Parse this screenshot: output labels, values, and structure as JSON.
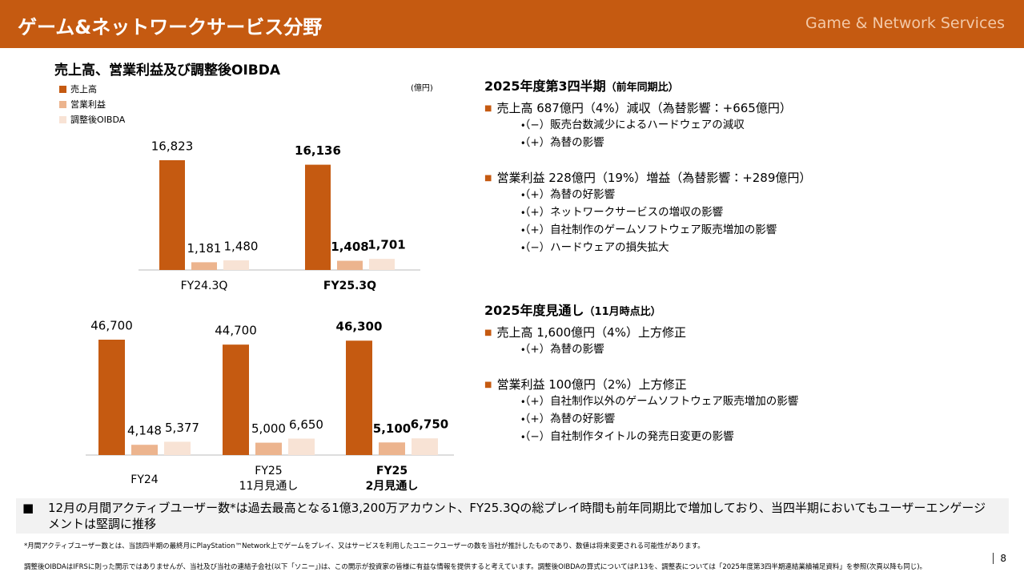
{
  "header": {
    "title": "ゲーム&ネットワークサービス分野",
    "subtitle": "Game & Network Services"
  },
  "chart_data": [
    {
      "type": "bar",
      "title": "売上高、営業利益及び調整後OIBDA",
      "unit": "(億円)",
      "categories": [
        "FY24.3Q",
        "FY25.3Q"
      ],
      "series": [
        {
          "name": "売上高",
          "color": "#c55a11",
          "values": [
            16823,
            16136
          ],
          "value_labels": [
            "16,823",
            "16,136"
          ]
        },
        {
          "name": "営業利益",
          "color": "#ecb48e",
          "values": [
            1181,
            1408
          ],
          "value_labels": [
            "1,181",
            "1,408"
          ]
        },
        {
          "name": "調整後OIBDA",
          "color": "#f8e3d5",
          "values": [
            1480,
            1701
          ],
          "value_labels": [
            "1,480",
            "1,701"
          ]
        }
      ]
    },
    {
      "type": "bar",
      "categories": [
        "FY24",
        "FY25",
        "FY25"
      ],
      "category_sublabels": [
        null,
        "11月見通し",
        "2月見通し"
      ],
      "series": [
        {
          "color": "#c55a11",
          "values": [
            46700,
            44700,
            46300
          ],
          "value_labels": [
            "46,700",
            "44,700",
            "46,300"
          ]
        },
        {
          "color": "#ecb48e",
          "values": [
            4148,
            5000,
            5100
          ],
          "value_labels": [
            "4,148",
            "5,000",
            "5,100"
          ]
        },
        {
          "color": "#f8e3d5",
          "values": [
            5377,
            6650,
            6750
          ],
          "value_labels": [
            "5,377",
            "6,650",
            "6,750"
          ]
        }
      ]
    }
  ],
  "sections": [
    {
      "heading": "2025年度第3四半期",
      "note": "（前年同期比）",
      "items": [
        {
          "text": "売上高  687億円（4%）減収（為替影響：+665億円）",
          "bullets": [
            "・（−）販売台数減少によるハードウェアの減収",
            "・（+）為替の影響"
          ]
        },
        {
          "text": "営業利益  228億円（19%）増益（為替影響：+289億円）",
          "bullets": [
            "・（+）為替の好影響",
            "・（+）ネットワークサービスの増収の影響",
            "・（+）自社制作のゲームソフトウェア販売増加の影響",
            "・（−）ハードウェアの損失拡大"
          ]
        }
      ]
    },
    {
      "heading": "2025年度見通し",
      "note": "（11月時点比）",
      "items": [
        {
          "text": "売上高  1,600億円（4%）上方修正",
          "bullets": [
            "・（+）為替の影響"
          ]
        },
        {
          "text": "営業利益  100億円（2%）上方修正",
          "bullets": [
            "・（+）自社制作以外のゲームソフトウェア販売増加の影響",
            "・（+）為替の好影響",
            "・（−）自社制作タイトルの発売日変更の影響"
          ]
        }
      ]
    }
  ],
  "highlight": "12月の月間アクティブユーザー数*は過去最高となる1億3,200万アカウント、FY25.3Qの総プレイ時間も前年同期比で増加しており、当四半期においてもユーザーエンゲージメントは堅調に推移",
  "footnotes": [
    "*月間アクティブユーザー数とは、当該四半期の最終月にPlayStation™Network上でゲームをプレイ、又はサービスを利用したユニークユーザーの数を当社が推計したものであり、数値は将来変更される可能性があります。",
    "調整後OIBDAはIFRSに則った開示ではありませんが、当社及び当社の連結子会社(以下「ソニー」)は、この開示が投資家の皆様に有益な情報を提供すると考えています。調整後OIBDAの算式についてはP.13を、調整表については「2025年度第3四半期連結業績補足資料」を参照(次頁以降も同じ)。"
  ],
  "page_number": 8
}
